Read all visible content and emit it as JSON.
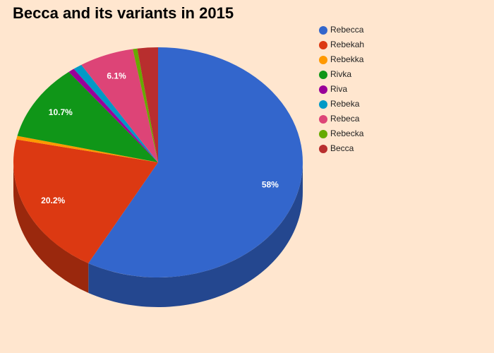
{
  "chart_data": {
    "type": "pie3d",
    "title": "Becca and its variants in 2015",
    "categories": [
      "Rebecca",
      "Rebekah",
      "Rebekka",
      "Rivka",
      "Riva",
      "Rebeka",
      "Rebeca",
      "Rebecka",
      "Becca"
    ],
    "values": [
      58,
      20.2,
      0.5,
      10.7,
      0.7,
      1.0,
      6.1,
      0.5,
      2.3
    ],
    "value_labels": [
      "58%",
      "20.2%",
      null,
      "10.7%",
      null,
      null,
      "6.1%",
      null,
      null
    ],
    "colors": [
      "#3366cc",
      "#dc3912",
      "#ff9900",
      "#109618",
      "#990099",
      "#0099c6",
      "#dd4477",
      "#66aa00",
      "#b82e2e"
    ],
    "legend_position": "right"
  }
}
